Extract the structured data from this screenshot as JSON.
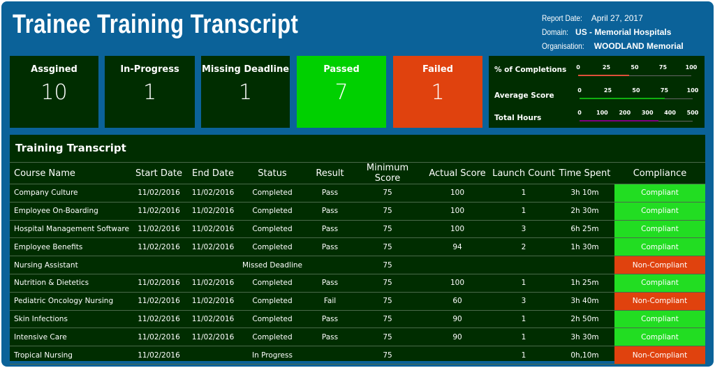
{
  "header": {
    "title": "Trainee Training Transcript",
    "report_date_label": "Report Date:",
    "report_date": "April 27, 2017",
    "domain_label": "Domain:",
    "domain": "US - Memorial Hospitals",
    "org_label": "Organisation:",
    "org": "WOODLAND Memorial Hospital"
  },
  "cards": [
    {
      "label": "Assgined",
      "value": "10",
      "color": "#002d00"
    },
    {
      "label": "In-Progress",
      "value": "1",
      "color": "#002d00"
    },
    {
      "label": "Missing Deadline",
      "value": "1",
      "color": "#002d00"
    },
    {
      "label": "Passed",
      "value": "7",
      "color": "#00d000"
    },
    {
      "label": "Failed",
      "value": "1",
      "color": "#e0420e"
    }
  ],
  "gauges": [
    {
      "label": "% of Completions",
      "ticks": [
        "0",
        "25",
        "50",
        "75",
        "100"
      ],
      "max": 100,
      "value": 45,
      "color": "#e0503a"
    },
    {
      "label": "Average Score",
      "ticks": [
        "0",
        "25",
        "50",
        "75",
        "100"
      ],
      "max": 100,
      "value": 75,
      "color": "#10b010"
    },
    {
      "label": "Total Hours",
      "ticks": [
        "0",
        "100",
        "200",
        "300",
        "400",
        "500"
      ],
      "max": 500,
      "value": 350,
      "color": "#800080"
    }
  ],
  "table": {
    "title": "Training Transcript",
    "columns": [
      "Course Name",
      "Start Date",
      "End Date",
      "Status",
      "Result",
      "Minimum Score",
      "Actual Score",
      "Launch Count",
      "Time Spent",
      "Compliance"
    ],
    "rows": [
      [
        "Company Culture",
        "11/02/2016",
        "11/02/2016",
        "Completed",
        "Pass",
        "75",
        "100",
        "1",
        "3h 10m",
        "Compliant"
      ],
      [
        "Employee On-Boarding",
        "11/02/2016",
        "11/02/2016",
        "Completed",
        "Pass",
        "75",
        "100",
        "1",
        "2h 30m",
        "Compliant"
      ],
      [
        "Hospital Management Software",
        "11/02/2016",
        "11/02/2016",
        "Completed",
        "Pass",
        "75",
        "100",
        "3",
        "6h 25m",
        "Compliant"
      ],
      [
        "Employee Benefits",
        "11/02/2016",
        "11/02/2016",
        "Completed",
        "Pass",
        "75",
        "94",
        "2",
        "1h 30m",
        "Compliant"
      ],
      [
        "Nursing Assistant",
        "",
        "",
        "Missed Deadline",
        "",
        "75",
        "",
        "",
        "",
        "Non-Compliant"
      ],
      [
        "Nutrition & Dietetics",
        "11/02/2016",
        "11/02/2016",
        "Completed",
        "Pass",
        "75",
        "100",
        "1",
        "1h 25m",
        "Compliant"
      ],
      [
        "Pediatric Oncology Nursing",
        "11/02/2016",
        "11/02/2016",
        "Completed",
        "Fail",
        "75",
        "60",
        "3",
        "3h 40m",
        "Non-Compliant"
      ],
      [
        "Skin Infections",
        "11/02/2016",
        "11/02/2016",
        "Completed",
        "Pass",
        "75",
        "90",
        "1",
        "2h 50m",
        "Compliant"
      ],
      [
        "Intensive Care",
        "11/02/2016",
        "11/02/2016",
        "Completed",
        "Pass",
        "75",
        "90",
        "1",
        "3h 30m",
        "Compliant"
      ],
      [
        "Tropical Nursing",
        "11/02/2016",
        "",
        "In Progress",
        "",
        "75",
        "",
        "1",
        "0h,10m",
        "Non-Compliant"
      ]
    ]
  },
  "colors": {
    "compliant": "#22dd22",
    "non_compliant": "#e0420e",
    "background": "#0b6299",
    "panel": "#002d00"
  }
}
